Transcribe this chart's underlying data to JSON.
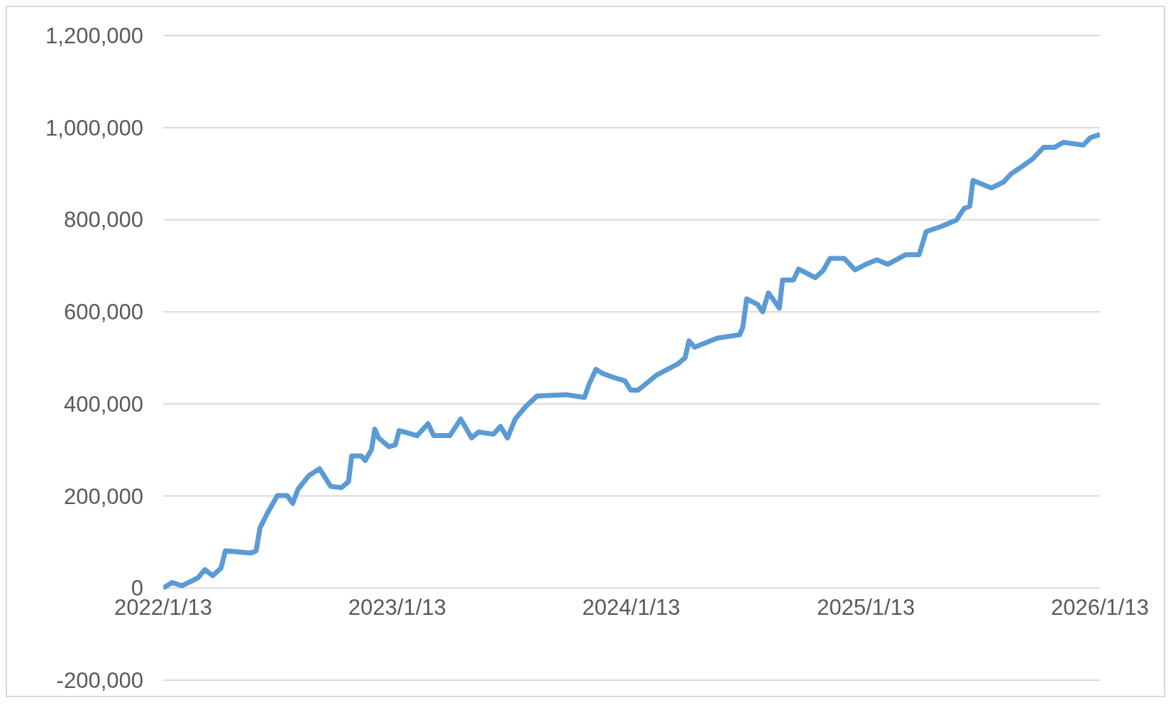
{
  "chart_data": {
    "type": "line",
    "x": [
      "2022-01-13",
      "2022-01-27",
      "2022-02-11",
      "2022-03-08",
      "2022-03-19",
      "2022-03-31",
      "2022-04-13",
      "2022-04-20",
      "2022-05-30",
      "2022-06-07",
      "2022-06-13",
      "2022-06-25",
      "2022-07-10",
      "2022-07-25",
      "2022-08-03",
      "2022-08-11",
      "2022-08-28",
      "2022-09-14",
      "2022-10-01",
      "2022-10-18",
      "2022-10-29",
      "2022-11-03",
      "2022-11-18",
      "2022-11-24",
      "2022-12-04",
      "2022-12-09",
      "2022-12-15",
      "2022-12-31",
      "2023-01-10",
      "2023-01-16",
      "2023-02-13",
      "2023-03-02",
      "2023-03-11",
      "2023-04-05",
      "2023-04-22",
      "2023-05-09",
      "2023-05-20",
      "2023-06-12",
      "2023-06-23",
      "2023-07-04",
      "2023-07-16",
      "2023-08-02",
      "2023-08-19",
      "2023-10-03",
      "2023-11-01",
      "2023-11-08",
      "2023-11-19",
      "2023-11-28",
      "2023-12-15",
      "2024-01-03",
      "2024-01-12",
      "2024-01-24",
      "2024-02-21",
      "2024-03-26",
      "2024-04-06",
      "2024-04-12",
      "2024-04-21",
      "2024-05-27",
      "2024-06-30",
      "2024-07-05",
      "2024-07-11",
      "2024-07-28",
      "2024-08-05",
      "2024-08-14",
      "2024-08-31",
      "2024-09-05",
      "2024-09-22",
      "2024-09-30",
      "2024-10-26",
      "2024-11-07",
      "2024-11-18",
      "2024-12-10",
      "2024-12-27",
      "2025-01-13",
      "2025-01-30",
      "2025-02-16",
      "2025-03-16",
      "2025-04-06",
      "2025-04-17",
      "2025-05-12",
      "2025-06-03",
      "2025-06-15",
      "2025-06-24",
      "2025-06-29",
      "2025-07-28",
      "2025-08-16",
      "2025-08-27",
      "2025-09-13",
      "2025-09-30",
      "2025-10-17",
      "2025-11-03",
      "2025-11-17",
      "2025-12-18",
      "2025-12-29",
      "2026-01-13"
    ],
    "series": [
      {
        "color": "#5b9bd5",
        "values": [
          0,
          12000,
          5000,
          22000,
          40000,
          27000,
          43000,
          81000,
          76000,
          81000,
          131000,
          164000,
          201000,
          201000,
          184000,
          214000,
          244000,
          259000,
          221000,
          218000,
          231000,
          287000,
          287000,
          277000,
          301000,
          345000,
          326000,
          307000,
          311000,
          342000,
          331000,
          357000,
          331000,
          331000,
          367000,
          326000,
          339000,
          334000,
          351000,
          326000,
          367000,
          395000,
          417000,
          420000,
          414000,
          442000,
          475000,
          467000,
          458000,
          450000,
          430000,
          430000,
          462000,
          487000,
          500000,
          537000,
          523000,
          543000,
          550000,
          566000,
          628000,
          616000,
          600000,
          641000,
          608000,
          669000,
          669000,
          693000,
          674000,
          689000,
          716000,
          716000,
          691000,
          703000,
          713000,
          703000,
          724000,
          724000,
          774000,
          786000,
          799000,
          824000,
          829000,
          885000,
          869000,
          882000,
          899000,
          915000,
          932000,
          957000,
          957000,
          968000,
          962000,
          978000,
          985000
        ]
      }
    ],
    "xlim": [
      "2022-01-13",
      "2026-01-13"
    ],
    "xticks": [
      {
        "value": "2022-01-13",
        "label": "2022/1/13"
      },
      {
        "value": "2023-01-13",
        "label": "2023/1/13"
      },
      {
        "value": "2024-01-13",
        "label": "2024/1/13"
      },
      {
        "value": "2025-01-13",
        "label": "2025/1/13"
      },
      {
        "value": "2026-01-13",
        "label": "2026/1/13"
      }
    ],
    "ylim": [
      -200000,
      1200000
    ],
    "yticks": [
      {
        "value": -200000,
        "label": "-200,000"
      },
      {
        "value": 0,
        "label": "0"
      },
      {
        "value": 200000,
        "label": "200,000"
      },
      {
        "value": 400000,
        "label": "400,000"
      },
      {
        "value": 600000,
        "label": "600,000"
      },
      {
        "value": 800000,
        "label": "800,000"
      },
      {
        "value": 1000000,
        "label": "1,000,000"
      },
      {
        "value": 1200000,
        "label": "1,200,000"
      }
    ],
    "grid": "y",
    "legend": false,
    "marker": "none",
    "line_style": "solid"
  }
}
